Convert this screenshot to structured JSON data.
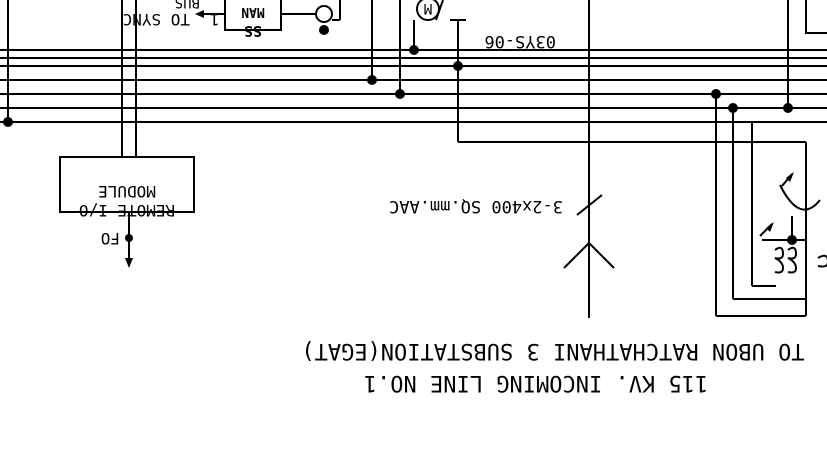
{
  "labels": {
    "to_sync": "TO SYNC",
    "to_sync_num": "1",
    "partial_top": "BUS",
    "ss": "SS",
    "man": "MAN",
    "motor": "M",
    "device_id": "03YS-06",
    "remote_io_line1": "REMOTE I/O",
    "remote_io_line2": "MODULE",
    "fo": "FO",
    "cable": "3-2x400 SQ.mm.AAC",
    "title_line1": "TO UBON RATCHATHANI 3 SUBSTATION(EGAT)",
    "title_line2": "115 KV. INCOMING LINE NO.1"
  },
  "colors": {
    "line": "#000000",
    "background": "#ffffff"
  }
}
